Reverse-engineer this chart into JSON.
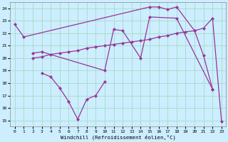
{
  "xlabel": "Windchill (Refroidissement éolien,°C)",
  "bg_color": "#cceeff",
  "grid_color": "#aaddcc",
  "line_color": "#993399",
  "lines": [
    {
      "x": [
        0,
        1,
        15,
        16,
        17,
        18,
        20,
        21,
        22
      ],
      "y": [
        22.7,
        21.7,
        24.1,
        24.1,
        23.9,
        24.1,
        22.2,
        20.2,
        17.5
      ]
    },
    {
      "x": [
        2,
        3,
        10,
        11,
        12,
        14,
        15,
        18,
        22
      ],
      "y": [
        20.4,
        20.5,
        19.0,
        22.3,
        22.2,
        20.0,
        23.3,
        23.2,
        17.5
      ]
    },
    {
      "x": [
        3,
        4,
        5,
        6,
        7,
        8,
        9,
        10
      ],
      "y": [
        18.8,
        18.5,
        17.6,
        16.5,
        15.1,
        16.7,
        17.0,
        18.1
      ]
    },
    {
      "x": [
        2,
        3,
        4,
        5,
        6,
        7,
        8,
        9,
        10,
        11,
        12,
        13,
        14,
        15,
        16,
        17,
        18,
        19,
        20,
        21,
        22,
        23
      ],
      "y": [
        20.0,
        20.1,
        20.3,
        20.4,
        20.5,
        20.6,
        20.8,
        20.9,
        21.0,
        21.1,
        21.2,
        21.3,
        21.4,
        21.5,
        21.7,
        21.8,
        22.0,
        22.1,
        22.2,
        22.4,
        23.2,
        14.9
      ]
    }
  ],
  "ylim": [
    14.5,
    24.5
  ],
  "xlim": [
    -0.5,
    23.5
  ],
  "yticks": [
    15,
    16,
    17,
    18,
    19,
    20,
    21,
    22,
    23,
    24
  ],
  "xticks": [
    0,
    1,
    2,
    3,
    4,
    5,
    6,
    7,
    8,
    9,
    10,
    11,
    12,
    13,
    14,
    15,
    16,
    17,
    18,
    19,
    20,
    21,
    22,
    23
  ]
}
